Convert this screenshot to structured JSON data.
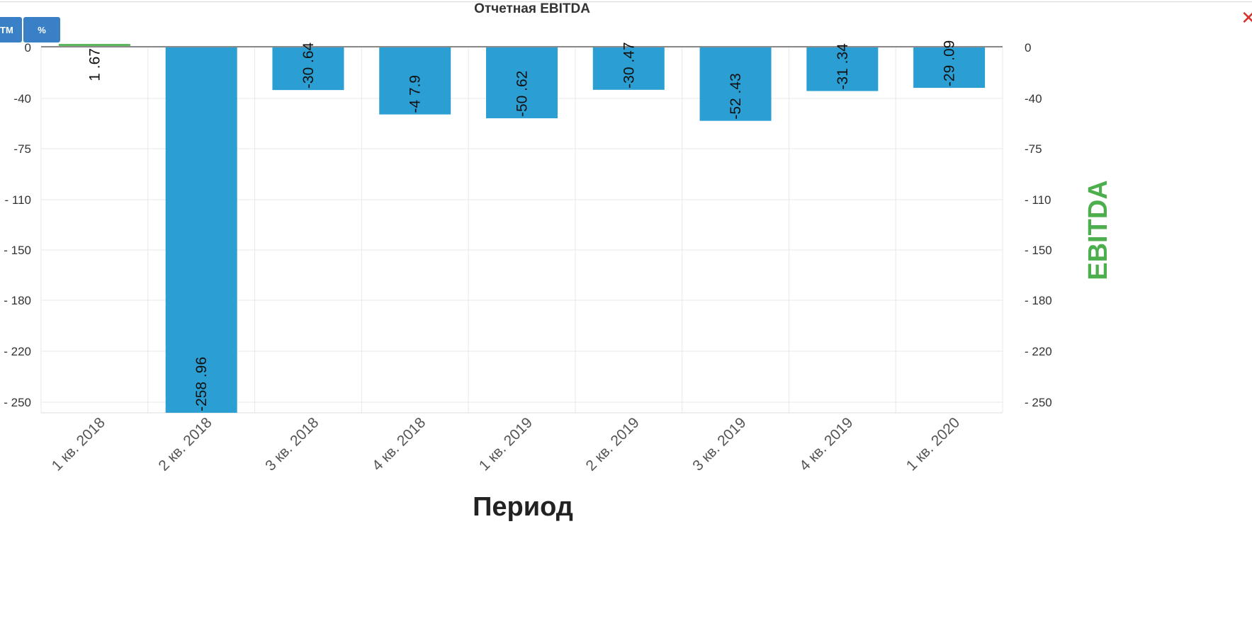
{
  "toolbar": {
    "button_a_label": "ТМ",
    "button_b_label": "%"
  },
  "close_icon": "close-icon",
  "chart_data": {
    "type": "bar",
    "title": "Отчетная EBITDA",
    "xlabel": "Период",
    "ylabel": "EBITDA",
    "categories": [
      "1 кв. 2018",
      "2 кв. 2018",
      "3 кв. 2018",
      "4 кв. 2018",
      "1 кв. 2019",
      "2 кв. 2019",
      "3 кв. 2019",
      "4 кв. 2019",
      "1 кв. 2020"
    ],
    "series": [
      {
        "values": [
          1.67,
          -258.96,
          -30.64,
          -47.9,
          -50.62,
          -30.47,
          -52.43,
          -31.34,
          -29.09
        ],
        "labels": [
          "1 .67",
          "-258 .96",
          "-30 .64",
          "-4 7.9",
          "-50 .62",
          "-30 .47",
          "-52 .43",
          "-31 .34",
          "-29 .09"
        ]
      }
    ],
    "y_ticks": [
      "0",
      "-40",
      "-75",
      "- 110",
      "- 150",
      "- 180",
      "- 220",
      "- 250"
    ],
    "y_secondary_ticks": [
      "0",
      "-40",
      "-75",
      "- 110",
      "- 150",
      "- 180",
      "- 220",
      "- 250"
    ],
    "ylim": [
      -259,
      0
    ],
    "grid": true,
    "colors": {
      "positive": "#5cb85c",
      "negative": "#2b9fd3",
      "ylabel": "#4cae4c"
    }
  }
}
